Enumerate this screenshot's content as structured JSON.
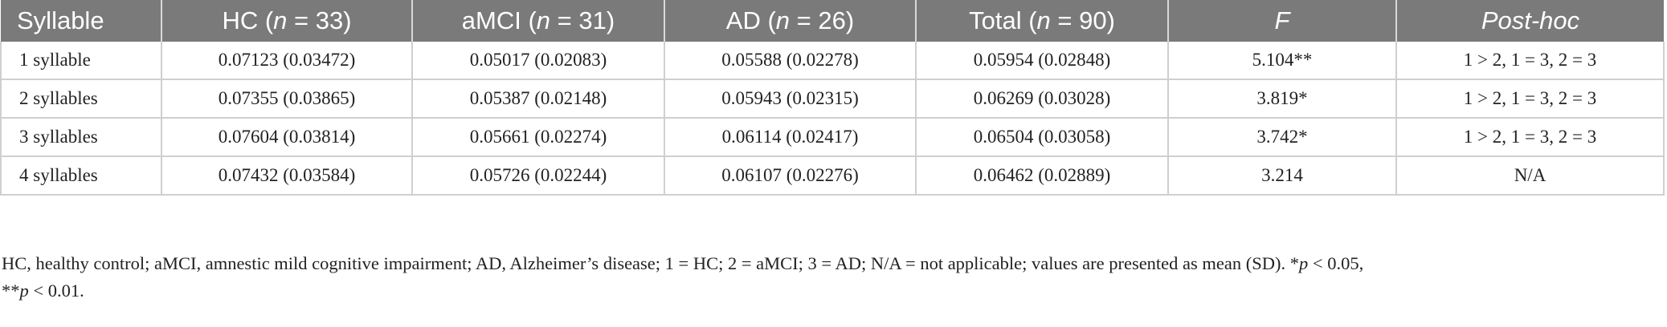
{
  "table": {
    "headers": [
      {
        "pre": "Syllable",
        "it": "",
        "post": "",
        "italic_all": false
      },
      {
        "pre": "HC (",
        "it": "n",
        "post": " = 33)",
        "italic_all": false
      },
      {
        "pre": "aMCI (",
        "it": "n",
        "post": " = 31)",
        "italic_all": false
      },
      {
        "pre": "AD (",
        "it": "n",
        "post": " = 26)",
        "italic_all": false
      },
      {
        "pre": "Total (",
        "it": "n",
        "post": " = 90)",
        "italic_all": false
      },
      {
        "pre": "",
        "it": "F",
        "post": "",
        "italic_all": true
      },
      {
        "pre": "",
        "it": "Post-hoc",
        "post": "",
        "italic_all": true
      }
    ],
    "rows": [
      [
        "1 syllable",
        "0.07123 (0.03472)",
        "0.05017 (0.02083)",
        "0.05588 (0.02278)",
        "0.05954 (0.02848)",
        "5.104**",
        "1 > 2, 1 = 3, 2 = 3"
      ],
      [
        "2 syllables",
        "0.07355 (0.03865)",
        "0.05387 (0.02148)",
        "0.05943 (0.02315)",
        "0.06269 (0.03028)",
        "3.819*",
        "1 > 2, 1 = 3, 2 = 3"
      ],
      [
        "3 syllables",
        "0.07604 (0.03814)",
        "0.05661 (0.02274)",
        "0.06114 (0.02417)",
        "0.06504 (0.03058)",
        "3.742*",
        "1 > 2, 1 = 3, 2 = 3"
      ],
      [
        "4 syllables",
        "0.07432 (0.03584)",
        "0.05726 (0.02244)",
        "0.06107 (0.02276)",
        "0.06462 (0.02889)",
        "3.214",
        "N/A"
      ]
    ]
  },
  "footnote": {
    "main": "HC, healthy control; aMCI, amnestic mild cognitive impairment; AD, Alzheimer’s disease; 1 = HC; 2 = aMCI; 3 = AD; N/A = not applicable; values are presented as mean (SD). ",
    "sig1_mark": "*",
    "sig1_p": "p",
    "sig1_rest": " < 0.05,",
    "sig2_mark": "**",
    "sig2_p": "p",
    "sig2_rest": " < 0.01."
  }
}
